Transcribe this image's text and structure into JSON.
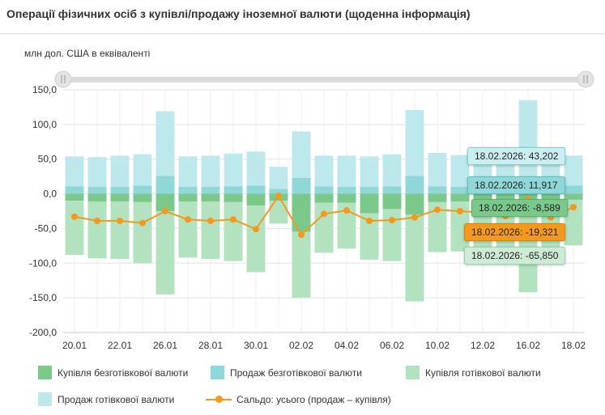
{
  "header": {
    "title": "Операції фізичних осіб з купівлі/продажу іноземної валюти (щоденна інформація)"
  },
  "unit_label": "млн дол. США в еквіваленті",
  "legend": {
    "buy_noncash": "Купівля безготівкової валюти",
    "sell_noncash": "Продаж безготівкової валюти",
    "buy_cash": "Купівля готівкової валюти",
    "sell_cash": "Продаж готівкової валюти",
    "balance": "Сальдо: усього (продаж – купівля)"
  },
  "colors": {
    "buy_noncash": "#7ac98a",
    "sell_noncash": "#8fd7d9",
    "buy_cash": "#b2e2bf",
    "sell_cash": "#bde9ec",
    "balance": "#f39a1e",
    "grid": "#e3e3e3",
    "axis_text": "#333333"
  },
  "tooltips": {
    "sell_cash": "18.02.2026: 43,202",
    "sell_noncash": "18.02.2026: 11,917",
    "buy_noncash": "18.02.2026: -8,589",
    "balance": "18.02.2026: -19,321",
    "buy_cash": "18.02.2026: -65,850"
  },
  "chart_data": {
    "type": "bar",
    "stacked": true,
    "ylim": [
      -200,
      150
    ],
    "yticks": [
      150,
      100,
      50,
      0,
      -50,
      -100,
      -150,
      -200
    ],
    "ytick_labels": [
      "150,0",
      "100,0",
      "50,0",
      "0,0",
      "-50,0",
      "-100,0",
      "-150,0",
      "-200,0"
    ],
    "categories": [
      "20.01",
      "21.01",
      "22.01",
      "23.01",
      "26.01",
      "27.01",
      "28.01",
      "29.01",
      "30.01",
      "31.01",
      "02.02",
      "03.02",
      "04.02",
      "05.02",
      "06.02",
      "09.02",
      "10.02",
      "11.02",
      "12.02",
      "13.02",
      "16.02",
      "17.02",
      "18.02"
    ],
    "x_labels_shown": [
      "20.01",
      "22.01",
      "26.01",
      "28.01",
      "30.01",
      "02.02",
      "04.02",
      "06.02",
      "10.02",
      "12.02",
      "16.02",
      "18.02"
    ],
    "series": [
      {
        "name": "Продаж безготівкової валюти",
        "key": "sell_noncash",
        "values": [
          11,
          10,
          10,
          12,
          26,
          10,
          10,
          11,
          12,
          7,
          23,
          11,
          10,
          10,
          11,
          26,
          11,
          10,
          11,
          11,
          25,
          11,
          11.917
        ]
      },
      {
        "name": "Продаж готівкової валюти",
        "key": "sell_cash",
        "values": [
          43,
          43,
          45,
          45,
          93,
          44,
          45,
          47,
          49,
          32,
          67,
          44,
          45,
          44,
          46,
          95,
          48,
          46,
          47,
          45,
          110,
          45,
          43.202
        ]
      },
      {
        "name": "Купівля безготівкової валюти",
        "key": "buy_noncash",
        "values": [
          -10,
          -11,
          -11,
          -12,
          -25,
          -11,
          -11,
          -12,
          -17,
          -10,
          -55,
          -13,
          -13,
          -28,
          -22,
          -30,
          -12,
          -11,
          -12,
          -12,
          -30,
          -12,
          -8.589
        ]
      },
      {
        "name": "Купівля готівкової валюти",
        "key": "buy_cash",
        "values": [
          -78,
          -82,
          -83,
          -88,
          -120,
          -81,
          -83,
          -85,
          -96,
          -33,
          -95,
          -72,
          -66,
          -67,
          -75,
          -125,
          -72,
          -72,
          -74,
          -76,
          -112,
          -66,
          -65.85
        ]
      },
      {
        "name": "Сальдо: усього (продаж – купівля)",
        "key": "balance",
        "type": "line",
        "values": [
          -33,
          -39,
          -39,
          -42,
          -25,
          -37,
          -39,
          -37,
          -51,
          -3,
          -59,
          -29,
          -24,
          -39,
          -38,
          -34,
          -23,
          -25,
          -27,
          -32,
          -8,
          -34,
          -19.321
        ]
      }
    ]
  }
}
